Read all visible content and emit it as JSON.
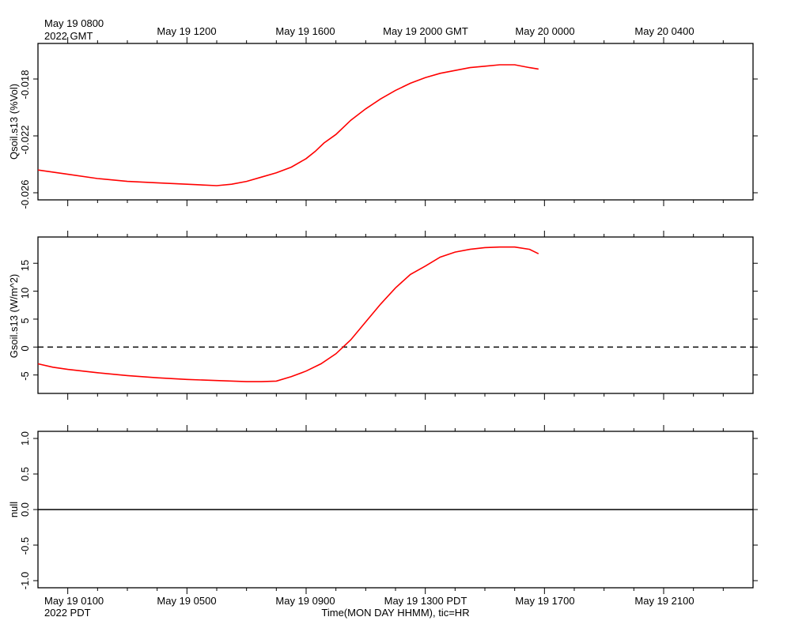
{
  "time_axis": {
    "gmt_ticks": [
      "May 19 0800",
      "May 19 1200",
      "May 19 1600",
      "May 19 2000 GMT",
      "May 20 0000",
      "May 20 0400"
    ],
    "gmt_first_subline": "2022 GMT",
    "pdt_ticks": [
      "May 19 0100",
      "May 19 0500",
      "May 19 0900",
      "May 19 1300 PDT",
      "May 19 1700",
      "May 19 2100"
    ],
    "pdt_first_subline": "2022 PDT",
    "xlabel": "Time(MON DAY HHMM), tic=HR"
  },
  "chart_data": [
    {
      "type": "line",
      "ylabel": "Qsoil.s13 (%Vol)",
      "x_range_gmt": [
        "May 19 0700",
        "May 20 0700"
      ],
      "ylim": [
        -0.0265,
        -0.0155
      ],
      "yticks": [
        "-0.018",
        "-0.022",
        "-0.026"
      ],
      "series": [
        {
          "color": "#ff0000",
          "x_hours_gmt": [
            7.0,
            8.0,
            9.0,
            10.0,
            11.0,
            12.0,
            13.0,
            13.5,
            14.0,
            14.5,
            15.0,
            15.5,
            16.0,
            16.3,
            16.6,
            17.0,
            17.5,
            18.0,
            18.5,
            19.0,
            19.5,
            20.0,
            20.5,
            21.0,
            21.5,
            22.0,
            22.5,
            23.0,
            23.5,
            23.8
          ],
          "values": [
            -0.0244,
            -0.0247,
            -0.025,
            -0.0252,
            -0.0253,
            -0.0254,
            -0.0255,
            -0.0254,
            -0.0252,
            -0.0249,
            -0.0246,
            -0.0242,
            -0.0236,
            -0.0231,
            -0.0225,
            -0.0219,
            -0.0209,
            -0.0201,
            -0.0194,
            -0.0188,
            -0.0183,
            -0.0179,
            -0.0176,
            -0.0174,
            -0.0172,
            -0.0171,
            -0.017,
            -0.017,
            -0.0172,
            -0.0173
          ]
        }
      ]
    },
    {
      "type": "line",
      "ylabel": "Gsoil.s13 (W/m^2)",
      "x_range_gmt": [
        "May 19 0700",
        "May 20 0700"
      ],
      "ylim": [
        -8.3,
        19.7
      ],
      "yticks": [
        "15",
        "10",
        "5",
        "0",
        "-5"
      ],
      "reference_line": {
        "y": 0,
        "style": "dashed"
      },
      "series": [
        {
          "color": "#ff0000",
          "x_hours_gmt": [
            7.0,
            7.5,
            8.0,
            9.0,
            10.0,
            11.0,
            12.0,
            13.0,
            14.0,
            14.5,
            15.0,
            15.5,
            16.0,
            16.5,
            17.0,
            17.5,
            18.0,
            18.5,
            19.0,
            19.5,
            20.0,
            20.5,
            21.0,
            21.5,
            22.0,
            22.5,
            23.0,
            23.5,
            23.8
          ],
          "values": [
            -3.0,
            -3.6,
            -4.0,
            -4.6,
            -5.1,
            -5.5,
            -5.8,
            -6.0,
            -6.2,
            -6.2,
            -6.1,
            -5.3,
            -4.3,
            -3.0,
            -1.2,
            1.3,
            4.5,
            7.7,
            10.6,
            13.0,
            14.5,
            16.1,
            17.0,
            17.5,
            17.8,
            17.9,
            17.9,
            17.5,
            16.7
          ]
        }
      ]
    },
    {
      "type": "line",
      "ylabel": "null",
      "x_range_gmt": [
        "May 19 0700",
        "May 20 0700"
      ],
      "ylim": [
        -1.1,
        1.1
      ],
      "yticks": [
        "1.0",
        "0.5",
        "0.0",
        "-0.5",
        "-1.0"
      ],
      "reference_line": {
        "y": 0,
        "style": "solid"
      },
      "series": []
    }
  ]
}
